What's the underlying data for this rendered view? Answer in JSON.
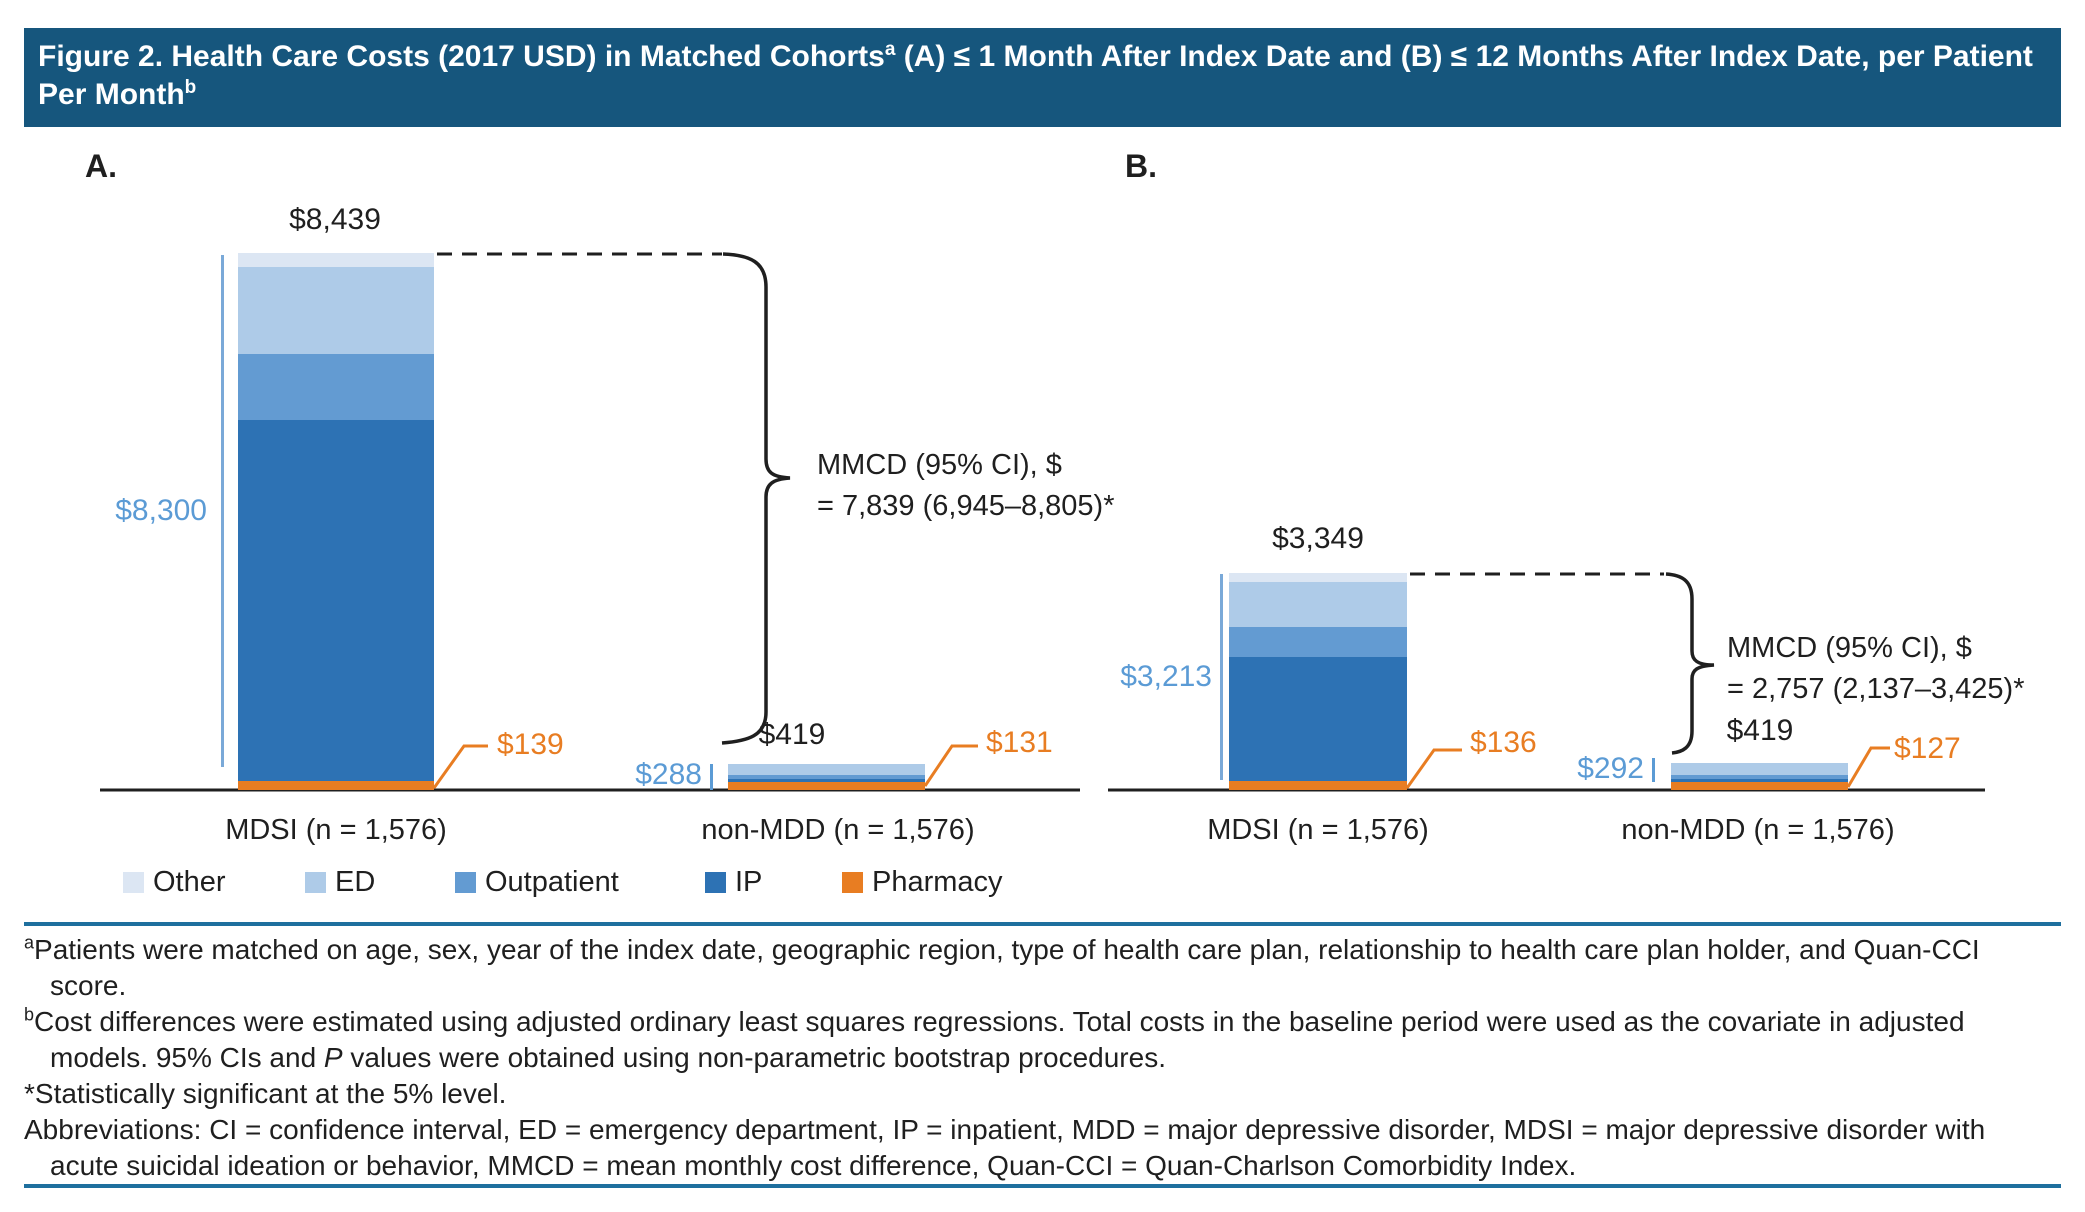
{
  "title": {
    "part1": "Figure 2. Health Care Costs (2017 USD) in Matched Cohorts",
    "sup1": "a",
    "part2": " (A) ≤ 1 Month After Index Date and (B) ≤ 12 Months After Index Date, per Patient Per Month",
    "sup2": "b"
  },
  "colors": {
    "title_bar": "#16567D",
    "rule": "#1E6F9E",
    "text": "#1F1F1F",
    "blue_label": "#5B9BD5",
    "bracket_line": "#7AA9D8",
    "other": "#DCE6F3",
    "ed": "#AECBE8",
    "outpatient": "#639BD2",
    "ip": "#2D72B4",
    "pharmacy": "#E87D22"
  },
  "legend": {
    "items": [
      {
        "label": "Other",
        "key": "other"
      },
      {
        "label": "ED",
        "key": "ed"
      },
      {
        "label": "Outpatient",
        "key": "outpatient"
      },
      {
        "label": "IP",
        "key": "ip"
      },
      {
        "label": "Pharmacy",
        "key": "pharmacy"
      }
    ]
  },
  "panels": [
    {
      "label": "A.",
      "mdsi": {
        "total_label": "$8,439",
        "side_label": "$8,300",
        "pharmacy_label": "$139",
        "x_label": "MDSI (n = 1,576)"
      },
      "nonmdd": {
        "total_label": "$419",
        "side_label": "$288",
        "pharmacy_label": "$131",
        "x_label": "non-MDD (n = 1,576)"
      },
      "annotation_line1": "MMCD (95% CI), $",
      "annotation_line2": "= 7,839 (6,945–8,805)*"
    },
    {
      "label": "B.",
      "mdsi": {
        "total_label": "$3,349",
        "side_label": "$3,213",
        "pharmacy_label": "$136",
        "x_label": "MDSI (n = 1,576)"
      },
      "nonmdd": {
        "total_label": "$419",
        "side_label": "$292",
        "pharmacy_label": "$127",
        "x_label": "non-MDD (n = 1,576)"
      },
      "annotation_line1": "MMCD (95% CI), $",
      "annotation_line2": "= 2,757 (2,137–3,425)*"
    }
  ],
  "chart_data": [
    {
      "type": "bar",
      "stacked": true,
      "panel": "A",
      "categories": [
        "MDSI (n = 1,576)",
        "non-MDD (n = 1,576)"
      ],
      "series": [
        {
          "name": "Pharmacy",
          "values": [
            139,
            131
          ]
        },
        {
          "name": "IP",
          "values": [
            5675,
            48
          ]
        },
        {
          "name": "Outpatient",
          "values": [
            1040,
            60
          ]
        },
        {
          "name": "ED",
          "values": [
            1370,
            180
          ]
        },
        {
          "name": "Other",
          "values": [
            215,
            0
          ]
        }
      ],
      "totals": [
        8439,
        419
      ],
      "medical_subtotals": [
        8300,
        288
      ],
      "mmcd_annotation": "MMCD (95% CI), $ = 7,839 (6,945–8,805)*",
      "segments_estimated": true,
      "legend_position": "bottom",
      "grid": false
    },
    {
      "type": "bar",
      "stacked": true,
      "panel": "B",
      "categories": [
        "MDSI (n = 1,576)",
        "non-MDD (n = 1,576)"
      ],
      "series": [
        {
          "name": "Pharmacy",
          "values": [
            136,
            127
          ]
        },
        {
          "name": "IP",
          "values": [
            1913,
            45
          ]
        },
        {
          "name": "Outpatient",
          "values": [
            470,
            62
          ]
        },
        {
          "name": "ED",
          "values": [
            690,
            185
          ]
        },
        {
          "name": "Other",
          "values": [
            140,
            0
          ]
        }
      ],
      "totals": [
        3349,
        419
      ],
      "medical_subtotals": [
        3213,
        292
      ],
      "mmcd_annotation": "MMCD (95% CI), $ = 2,757 (2,137–3,425)*",
      "segments_estimated": true,
      "legend_position": "bottom",
      "grid": false
    }
  ],
  "footnotes": {
    "a_sup": "a",
    "a_line1": "Patients were matched on age, sex, year of the index date, geographic region, type of health care plan, relationship to health care plan holder, and Quan-CCI",
    "a_line2": "score.",
    "b_sup": "b",
    "b_line1": "Cost differences were estimated using adjusted ordinary least squares regressions. Total costs in the baseline period were used as the covariate in adjusted",
    "b_line2_pre": "models. 95% CIs and ",
    "b_line2_italic": "P",
    "b_line2_post": " values were obtained using non-parametric bootstrap procedures.",
    "star": "*Statistically significant at the 5% level.",
    "abbrev_line1": "Abbreviations: CI = confidence interval, ED = emergency department, IP = inpatient, MDD = major depressive disorder, MDSI = major depressive disorder with",
    "abbrev_line2": "acute suicidal ideation or behavior, MMCD = mean monthly cost difference, Quan-CCI = Quan-Charlson Comorbidity Index."
  }
}
